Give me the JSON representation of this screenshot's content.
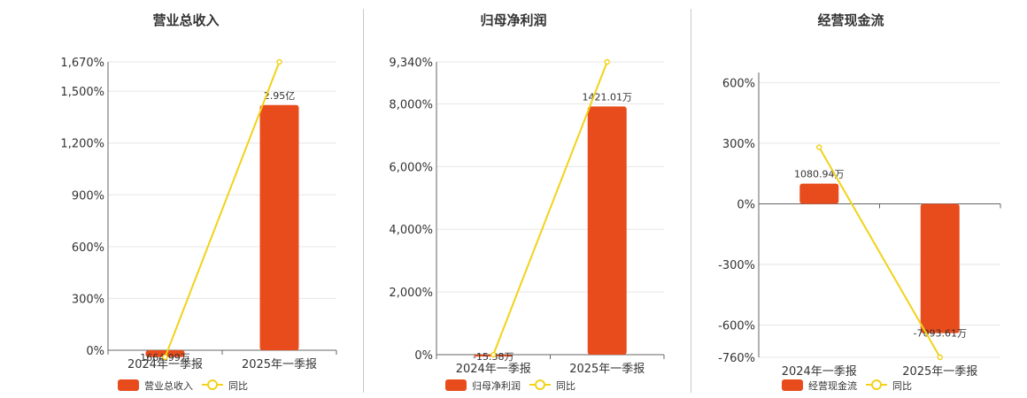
{
  "colors": {
    "bar": "#e84c1c",
    "line": "#f2d21a",
    "grid": "#e6e6e6",
    "axis": "#666666"
  },
  "chart_data": [
    {
      "type": "bar",
      "title": "营业总收入",
      "categories": [
        "2024年一季报",
        "2025年一季报"
      ],
      "series": [
        {
          "name": "营业总收入",
          "type": "bar",
          "values": [
            -40,
            1420
          ],
          "data_labels": [
            "1664.99万",
            "2.95亿"
          ]
        },
        {
          "name": "同比",
          "type": "line",
          "values": [
            -40,
            1670
          ]
        }
      ],
      "ylim": [
        0,
        1670
      ],
      "ticks": [
        0,
        300,
        600,
        900,
        1200,
        1500,
        1670
      ],
      "tick_labels": [
        "0%",
        "300%",
        "600%",
        "900%",
        "1,200%",
        "1,500%",
        "1,670%"
      ],
      "legend": "bottom-left"
    },
    {
      "type": "bar",
      "title": "归母净利润",
      "categories": [
        "2024年一季报",
        "2025年一季报"
      ],
      "series": [
        {
          "name": "归母净利润",
          "type": "bar",
          "values": [
            -60,
            7920
          ],
          "data_labels": [
            "-15.38万",
            "1421.01万"
          ]
        },
        {
          "name": "同比",
          "type": "line",
          "values": [
            0,
            9340
          ]
        }
      ],
      "ylim": [
        0,
        9340
      ],
      "ticks": [
        0,
        2000,
        4000,
        6000,
        8000,
        9340
      ],
      "tick_labels": [
        "0%",
        "2,000%",
        "4,000%",
        "6,000%",
        "8,000%",
        "9,340%"
      ],
      "legend": "bottom-left"
    },
    {
      "type": "bar",
      "title": "经营现金流",
      "categories": [
        "2024年一季报",
        "2025年一季报"
      ],
      "series": [
        {
          "name": "经营现金流",
          "type": "bar",
          "values": [
            100,
            -640
          ],
          "data_labels": [
            "1080.94万",
            "-7093.61万"
          ]
        },
        {
          "name": "同比",
          "type": "line",
          "values": [
            280,
            -760
          ]
        }
      ],
      "ylim": [
        -760,
        650
      ],
      "ticks": [
        -760,
        -600,
        -300,
        0,
        300,
        600
      ],
      "tick_labels": [
        "-760%",
        "-600%",
        "-300%",
        "0%",
        "300%",
        "600%"
      ],
      "legend": "bottom-left"
    }
  ]
}
